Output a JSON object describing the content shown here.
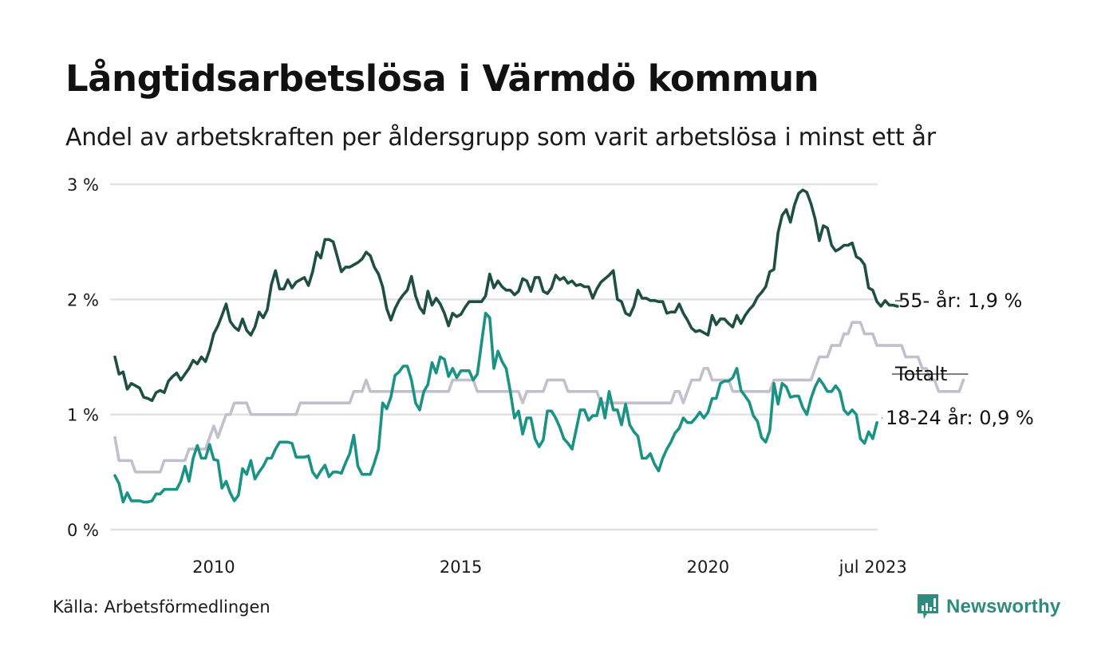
{
  "header": {
    "title": "Långtidsarbetslösa i Värmdö kommun",
    "subtitle": "Andel av arbetskraften per åldersgrupp som varit arbetslösa i minst ett år"
  },
  "footer": {
    "source": "Källa: Arbetsförmedlingen",
    "brand": "Newsworthy",
    "brand_icon": "newsworthy-logo-icon"
  },
  "colors": {
    "series_55": "#1f4f43",
    "series_total": "#c2c0cc",
    "series_18_24": "#1a9384",
    "grid": "#e2e2e6",
    "brand": "#2e8b7f"
  },
  "chart_data": {
    "type": "line",
    "title": "Långtidsarbetslösa i Värmdö kommun",
    "subtitle": "Andel av arbetskraften per åldersgrupp som varit arbetslösa i minst ett år",
    "xlabel": "",
    "ylabel": "",
    "x_start": "2008-01",
    "x_end": "2023-07",
    "x_step": "month",
    "xlim": [
      2008.0,
      2023.5
    ],
    "ylim": [
      0,
      3
    ],
    "yticks": [
      0,
      1,
      2,
      3
    ],
    "ytick_labels": [
      "0 %",
      "1 %",
      "2 %",
      "3 %"
    ],
    "xticks": [
      2010,
      2015,
      2020,
      2023.5
    ],
    "xtick_labels": [
      "2010",
      "2015",
      "2020",
      "jul 2023"
    ],
    "grid": true,
    "legend": "end-labels-right",
    "series": [
      {
        "name": "55- år",
        "end_label": "55- år: 1,9 %",
        "color": "#1f4f43",
        "values": [
          1.5,
          1.35,
          1.37,
          1.22,
          1.27,
          1.25,
          1.23,
          1.15,
          1.14,
          1.12,
          1.19,
          1.21,
          1.19,
          1.29,
          1.33,
          1.36,
          1.3,
          1.35,
          1.4,
          1.47,
          1.44,
          1.5,
          1.46,
          1.56,
          1.7,
          1.77,
          1.86,
          1.96,
          1.81,
          1.76,
          1.73,
          1.83,
          1.73,
          1.69,
          1.76,
          1.89,
          1.84,
          1.91,
          2.13,
          2.25,
          2.09,
          2.09,
          2.17,
          2.1,
          2.15,
          2.17,
          2.19,
          2.12,
          2.24,
          2.41,
          2.36,
          2.52,
          2.52,
          2.5,
          2.37,
          2.24,
          2.28,
          2.28,
          2.3,
          2.32,
          2.35,
          2.41,
          2.38,
          2.28,
          2.22,
          2.11,
          1.92,
          1.82,
          1.92,
          1.99,
          2.04,
          2.08,
          2.2,
          2.03,
          1.93,
          1.88,
          2.07,
          1.95,
          2.01,
          1.96,
          1.88,
          1.77,
          1.88,
          1.85,
          1.87,
          1.93,
          1.98,
          1.98,
          1.98,
          1.98,
          2.03,
          2.22,
          2.1,
          2.16,
          2.11,
          2.08,
          2.08,
          2.04,
          2.07,
          2.18,
          2.16,
          2.07,
          2.19,
          2.19,
          2.07,
          2.05,
          2.1,
          2.21,
          2.17,
          2.19,
          2.14,
          2.16,
          2.12,
          2.13,
          2.11,
          2.11,
          2.01,
          2.09,
          2.15,
          2.18,
          2.21,
          2.25,
          2.0,
          1.98,
          1.88,
          1.86,
          1.94,
          2.08,
          2.01,
          2.01,
          1.99,
          1.99,
          1.98,
          1.98,
          1.88,
          1.89,
          1.89,
          1.96,
          1.88,
          1.82,
          1.75,
          1.72,
          1.73,
          1.71,
          1.69,
          1.86,
          1.78,
          1.83,
          1.83,
          1.79,
          1.76,
          1.86,
          1.79,
          1.86,
          1.91,
          1.95,
          2.02,
          2.06,
          2.11,
          2.24,
          2.26,
          2.58,
          2.73,
          2.78,
          2.67,
          2.82,
          2.92,
          2.95,
          2.93,
          2.83,
          2.7,
          2.51,
          2.64,
          2.62,
          2.47,
          2.42,
          2.44,
          2.47,
          2.47,
          2.49,
          2.37,
          2.35,
          2.3,
          2.1,
          2.08,
          1.98,
          1.94,
          1.99,
          1.95,
          1.95,
          1.94
        ]
      },
      {
        "name": "Totalt",
        "end_label": "Totalt",
        "color": "#c2c0cc",
        "values": [
          0.8,
          0.6,
          0.6,
          0.6,
          0.6,
          0.5,
          0.5,
          0.5,
          0.5,
          0.5,
          0.5,
          0.5,
          0.6,
          0.6,
          0.6,
          0.6,
          0.6,
          0.6,
          0.7,
          0.7,
          0.7,
          0.7,
          0.7,
          0.8,
          0.9,
          0.8,
          0.9,
          1.0,
          1.0,
          1.1,
          1.1,
          1.1,
          1.1,
          1.0,
          1.0,
          1.0,
          1.0,
          1.0,
          1.0,
          1.0,
          1.0,
          1.0,
          1.0,
          1.0,
          1.0,
          1.1,
          1.1,
          1.1,
          1.1,
          1.1,
          1.1,
          1.1,
          1.1,
          1.1,
          1.1,
          1.1,
          1.1,
          1.1,
          1.2,
          1.2,
          1.2,
          1.3,
          1.2,
          1.2,
          1.2,
          1.2,
          1.2,
          1.2,
          1.2,
          1.2,
          1.2,
          1.2,
          1.2,
          1.2,
          1.2,
          1.2,
          1.2,
          1.2,
          1.2,
          1.2,
          1.2,
          1.2,
          1.3,
          1.3,
          1.3,
          1.3,
          1.3,
          1.3,
          1.2,
          1.2,
          1.2,
          1.2,
          1.2,
          1.2,
          1.2,
          1.2,
          1.2,
          1.2,
          1.2,
          1.1,
          1.2,
          1.2,
          1.2,
          1.2,
          1.2,
          1.3,
          1.3,
          1.3,
          1.3,
          1.3,
          1.2,
          1.2,
          1.2,
          1.2,
          1.2,
          1.2,
          1.2,
          1.2,
          1.1,
          1.1,
          1.1,
          1.1,
          1.1,
          1.1,
          1.1,
          1.1,
          1.1,
          1.1,
          1.1,
          1.1,
          1.1,
          1.1,
          1.1,
          1.1,
          1.1,
          1.1,
          1.2,
          1.2,
          1.1,
          1.2,
          1.3,
          1.3,
          1.3,
          1.4,
          1.4,
          1.3,
          1.3,
          1.3,
          1.3,
          1.3,
          1.2,
          1.2,
          1.2,
          1.2,
          1.2,
          1.2,
          1.2,
          1.2,
          1.2,
          1.2,
          1.3,
          1.3,
          1.3,
          1.3,
          1.3,
          1.3,
          1.3,
          1.3,
          1.3,
          1.3,
          1.4,
          1.5,
          1.5,
          1.5,
          1.6,
          1.6,
          1.6,
          1.7,
          1.7,
          1.8,
          1.8,
          1.8,
          1.7,
          1.7,
          1.7,
          1.6,
          1.6,
          1.6,
          1.6,
          1.6,
          1.6,
          1.6,
          1.5,
          1.5,
          1.5,
          1.5,
          1.4,
          1.4,
          1.3,
          1.3,
          1.2,
          1.2,
          1.2,
          1.2,
          1.2,
          1.2,
          1.3
        ]
      },
      {
        "name": "18-24 år",
        "end_label": "18-24 år: 0,9 %",
        "color": "#1a9384",
        "values": [
          0.47,
          0.4,
          0.24,
          0.32,
          0.25,
          0.25,
          0.25,
          0.24,
          0.24,
          0.25,
          0.31,
          0.31,
          0.35,
          0.35,
          0.35,
          0.35,
          0.42,
          0.55,
          0.42,
          0.62,
          0.73,
          0.62,
          0.62,
          0.74,
          0.61,
          0.6,
          0.36,
          0.42,
          0.32,
          0.25,
          0.3,
          0.53,
          0.48,
          0.6,
          0.44,
          0.5,
          0.55,
          0.62,
          0.62,
          0.7,
          0.76,
          0.76,
          0.76,
          0.75,
          0.63,
          0.63,
          0.63,
          0.64,
          0.5,
          0.45,
          0.51,
          0.56,
          0.46,
          0.5,
          0.5,
          0.49,
          0.58,
          0.66,
          0.82,
          0.55,
          0.48,
          0.48,
          0.48,
          0.58,
          0.7,
          1.1,
          1.05,
          1.15,
          1.34,
          1.37,
          1.42,
          1.42,
          1.3,
          1.1,
          1.04,
          1.2,
          1.26,
          1.45,
          1.36,
          1.5,
          1.48,
          1.33,
          1.4,
          1.32,
          1.38,
          1.38,
          1.38,
          1.3,
          1.35,
          1.62,
          1.88,
          1.84,
          1.4,
          1.55,
          1.46,
          1.4,
          1.2,
          0.97,
          1.03,
          0.83,
          0.97,
          0.97,
          0.79,
          0.72,
          0.78,
          1.03,
          1.03,
          0.97,
          0.89,
          0.79,
          0.75,
          0.7,
          0.87,
          1.04,
          1.04,
          0.95,
          0.99,
          0.99,
          1.14,
          0.97,
          1.2,
          1.04,
          1.04,
          0.91,
          1.09,
          0.91,
          0.85,
          0.81,
          0.62,
          0.62,
          0.66,
          0.57,
          0.51,
          0.62,
          0.7,
          0.76,
          0.84,
          0.88,
          0.97,
          0.93,
          0.93,
          0.97,
          1.02,
          0.97,
          1.02,
          1.14,
          1.14,
          1.27,
          1.29,
          1.29,
          1.32,
          1.4,
          1.21,
          1.16,
          1.11,
          0.99,
          0.94,
          0.8,
          0.76,
          0.86,
          1.27,
          1.09,
          1.27,
          1.24,
          1.15,
          1.16,
          1.16,
          1.06,
          1.0,
          1.14,
          1.24,
          1.31,
          1.26,
          1.2,
          1.2,
          1.25,
          1.2,
          1.04,
          1.0,
          1.04,
          1.0,
          0.79,
          0.75,
          0.85,
          0.79,
          0.93
        ]
      }
    ]
  }
}
